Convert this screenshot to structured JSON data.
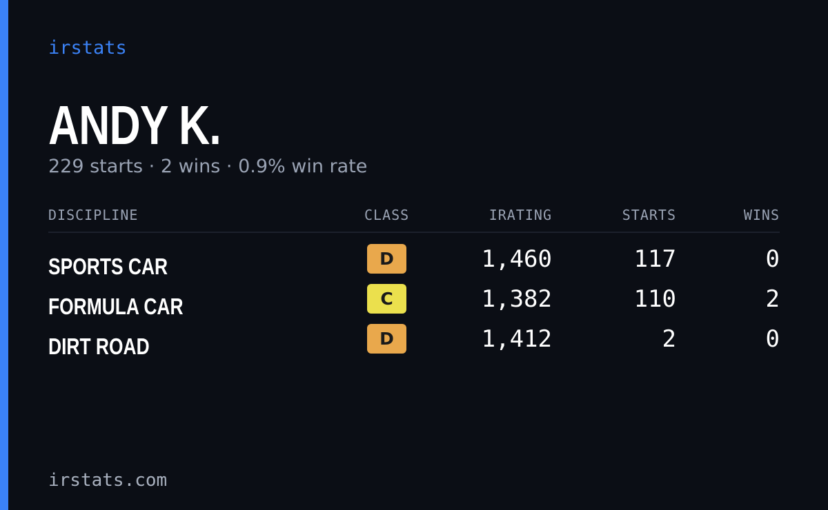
{
  "header": {
    "brand": "irstats",
    "name": "ANDY K.",
    "summary": "229 starts · 2 wins · 0.9% win rate"
  },
  "table": {
    "columns": [
      "DISCIPLINE",
      "CLASS",
      "IRATING",
      "STARTS",
      "WINS"
    ],
    "rows": [
      [
        "SPORTS CAR",
        "D",
        "1,460",
        "117",
        "0"
      ],
      [
        "FORMULA CAR",
        "C",
        "1,382",
        "110",
        "2"
      ],
      [
        "DIRT ROAD",
        "D",
        "1,412",
        "2",
        "0"
      ]
    ],
    "class_colors": {
      "D": "#e9a84c",
      "C": "#ebe04d"
    }
  },
  "footer": {
    "site": "irstats.com"
  }
}
